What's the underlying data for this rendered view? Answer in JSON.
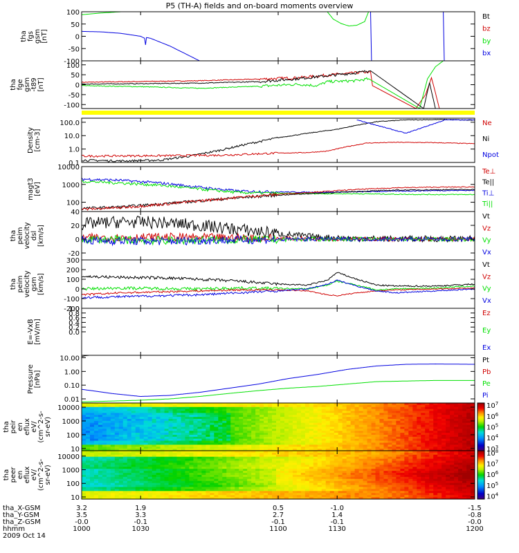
{
  "title": "P5 (TH-A) fields and on-board moments overview",
  "x_axis": {
    "tick_labels": [
      "1000",
      "1030",
      "1100",
      "1130",
      "1200"
    ],
    "x_values": [
      1000,
      1030,
      1100,
      1130,
      1200
    ],
    "xlim": [
      1000,
      1200
    ],
    "orbit_rows": [
      {
        "label": "tha_X-GSM",
        "values": [
          "3.2",
          "1.9",
          "0.5",
          "-1.0",
          "-1.5"
        ]
      },
      {
        "label": "tha_Y-GSM",
        "values": [
          "3.5",
          "3.3",
          "2.7",
          "1.4",
          "-0.8"
        ]
      },
      {
        "label": "tha_Z-GSM",
        "values": [
          "-0.0",
          "-0.1",
          "-0.1",
          "-0.1",
          "-0.0"
        ]
      },
      {
        "label": "hhmm",
        "values": [
          "1000",
          "1030",
          "1100",
          "1130",
          "1200"
        ]
      }
    ],
    "date_label": "2009 Oct 14"
  },
  "colors": {
    "black": "#000000",
    "red": "#d00000",
    "green": "#00e000",
    "blue": "#0000e0",
    "yellow": "#ffff00"
  },
  "chart_data": [
    {
      "type": "line",
      "panel": "fgs",
      "ylabel": [
        "tha",
        "fgs",
        "gsm",
        "[nT]"
      ],
      "ylim": [
        -100,
        100
      ],
      "yticks": [
        "100",
        "50",
        "0",
        "-50",
        "-100"
      ],
      "legend": [
        {
          "name": "Bt",
          "color": "#000000"
        },
        {
          "name": "bz",
          "color": "#d00000"
        },
        {
          "name": "by",
          "color": "#00e000"
        },
        {
          "name": "bx",
          "color": "#0000e0"
        }
      ],
      "series": [
        {
          "name": "by",
          "color": "#00e000",
          "x": [
            1000,
            1010,
            1020,
            1030
          ],
          "y": [
            88,
            95,
            100,
            105
          ]
        },
        {
          "name": "by",
          "color": "#00e000",
          "x": [
            1125,
            1128,
            1132,
            1136,
            1140,
            1144,
            1146
          ],
          "y": [
            100,
            70,
            52,
            42,
            45,
            60,
            100
          ]
        },
        {
          "name": "bx",
          "color": "#0000e0",
          "x": [
            1000,
            1010,
            1020,
            1030,
            1032,
            1032.5,
            1033,
            1035,
            1045,
            1055,
            1060
          ],
          "y": [
            20,
            18,
            12,
            0,
            -8,
            -35,
            -5,
            -8,
            -40,
            -80,
            -100
          ]
        },
        {
          "name": "bx",
          "color": "#0000e0",
          "x": [
            1147,
            1147.5
          ],
          "y": [
            100,
            -100
          ]
        },
        {
          "name": "bx",
          "color": "#0000e0",
          "x": [
            1184,
            1184.5
          ],
          "y": [
            100,
            -100
          ]
        }
      ]
    },
    {
      "type": "line",
      "panel": "fge",
      "ylabel": [
        "tha",
        "fge",
        "gsm",
        "-t89",
        "[nT]"
      ],
      "ylim": [
        -120,
        120
      ],
      "yticks": [
        "100",
        "50",
        "0",
        "-50",
        "-100"
      ],
      "series": [
        {
          "name": "bz",
          "color": "#d00000",
          "x": [
            1000,
            1030,
            1060,
            1090,
            1110,
            1125,
            1140,
            1147,
            1148,
            1170,
            1175,
            1178,
            1180,
            1182
          ],
          "y": [
            12,
            16,
            20,
            28,
            35,
            48,
            60,
            65,
            -5,
            -120,
            -50,
            35,
            -40,
            -120
          ]
        },
        {
          "name": "by",
          "color": "#00e000",
          "x": [
            1000,
            1030,
            1060,
            1090,
            1110,
            1120,
            1125,
            1140,
            1146,
            1172,
            1176,
            1180,
            1184
          ],
          "y": [
            -5,
            -10,
            -18,
            -8,
            2,
            -5,
            15,
            20,
            30,
            -120,
            30,
            90,
            120
          ]
        },
        {
          "name": "Bt",
          "color": "#000000",
          "x": [
            1000,
            1030,
            1060,
            1090,
            1110,
            1125,
            1140,
            1147,
            1174,
            1177,
            1180
          ],
          "y": [
            3,
            5,
            8,
            15,
            30,
            45,
            60,
            70,
            -120,
            10,
            -120
          ]
        }
      ]
    },
    {
      "type": "line",
      "panel": "density",
      "ylabel": [
        "Density",
        "[cm-3]"
      ],
      "ylim": [
        0.1,
        200
      ],
      "yscale": "log",
      "yticks": [
        "100.0",
        "10.0",
        "1.0",
        "0.1"
      ],
      "legend": [
        {
          "name": "Ne",
          "color": "#d00000"
        },
        {
          "name": "Ni",
          "color": "#000000"
        },
        {
          "name": "Npot",
          "color": "#0000e0"
        }
      ],
      "series": [
        {
          "name": "Ni",
          "color": "#000000",
          "x": [
            1000,
            1020,
            1040,
            1055,
            1070,
            1085,
            1100,
            1115,
            1130,
            1140,
            1150,
            1165,
            1185,
            1200
          ],
          "y": [
            0.15,
            0.13,
            0.15,
            0.3,
            0.8,
            2.5,
            7,
            15,
            30,
            60,
            110,
            150,
            160,
            140
          ]
        },
        {
          "name": "Ne",
          "color": "#d00000",
          "x": [
            1000,
            1040,
            1070,
            1100,
            1115,
            1125,
            1135,
            1145,
            1160,
            1180,
            1200
          ],
          "y": [
            0.3,
            0.32,
            0.35,
            0.5,
            0.55,
            0.7,
            1.5,
            2.8,
            3.2,
            3.0,
            2.5
          ]
        },
        {
          "name": "Npot",
          "color": "#0000e0",
          "x": [
            1140,
            1150,
            1165,
            1185,
            1200
          ],
          "y": [
            150,
            60,
            15,
            150,
            150
          ]
        }
      ]
    },
    {
      "type": "line",
      "panel": "temperature",
      "ylabel": [
        "magt3",
        "[eV]"
      ],
      "ylim": [
        30,
        10000
      ],
      "yscale": "log",
      "yticks": [
        "10000",
        "1000",
        "100"
      ],
      "legend": [
        {
          "name": "Te⊥",
          "color": "#d00000"
        },
        {
          "name": "Te||",
          "color": "#000000"
        },
        {
          "name": "Ti⊥",
          "color": "#0000e0"
        },
        {
          "name": "Ti||",
          "color": "#00e000"
        }
      ],
      "series": [
        {
          "name": "Ti⊥",
          "color": "#0000e0",
          "x": [
            1000,
            1020,
            1040,
            1060,
            1080,
            1100,
            1120,
            1140,
            1160,
            1180,
            1200
          ],
          "y": [
            2000,
            1700,
            1200,
            700,
            420,
            380,
            360,
            380,
            420,
            450,
            460
          ]
        },
        {
          "name": "Ti||",
          "color": "#00e000",
          "x": [
            1000,
            1020,
            1040,
            1060,
            1080,
            1100,
            1120,
            1140,
            1160,
            1180,
            1200
          ],
          "y": [
            1500,
            1200,
            900,
            550,
            350,
            320,
            300,
            300,
            280,
            270,
            270
          ]
        },
        {
          "name": "Te||",
          "color": "#000000",
          "x": [
            1000,
            1020,
            1040,
            1060,
            1080,
            1100,
            1120,
            1140,
            1160,
            1180,
            1200
          ],
          "y": [
            45,
            55,
            80,
            120,
            180,
            250,
            320,
            400,
            480,
            500,
            520
          ]
        },
        {
          "name": "Te⊥",
          "color": "#d00000",
          "x": [
            1000,
            1020,
            1040,
            1060,
            1080,
            1100,
            1120,
            1140,
            1160,
            1180,
            1200
          ],
          "y": [
            40,
            50,
            75,
            120,
            190,
            280,
            380,
            520,
            650,
            700,
            720
          ]
        }
      ]
    },
    {
      "type": "line",
      "panel": "velocity-dsl",
      "ylabel": [
        "tha",
        "peim",
        "velocity",
        "dsl",
        "[km/s]"
      ],
      "ylim": [
        -30,
        40
      ],
      "yticks": [
        "40",
        "20",
        "0",
        "-20"
      ],
      "legend": [
        {
          "name": "Vt",
          "color": "#000000"
        },
        {
          "name": "Vz",
          "color": "#d00000"
        },
        {
          "name": "Vy",
          "color": "#00e000"
        },
        {
          "name": "Vx",
          "color": "#0000e0"
        }
      ],
      "series": [
        {
          "name": "Vt",
          "color": "#000000",
          "x": [
            1000,
            1020,
            1040,
            1060,
            1080,
            1100,
            1120,
            1140,
            1160,
            1180,
            1200
          ],
          "y": [
            22,
            25,
            24,
            20,
            14,
            8,
            3,
            1,
            0.5,
            0.5,
            0.5
          ],
          "noise": 9
        },
        {
          "name": "Vz",
          "color": "#d00000",
          "x": [
            1000,
            1040,
            1080,
            1120,
            1160,
            1200
          ],
          "y": [
            2,
            3,
            2,
            0.5,
            0,
            0
          ],
          "noise": 6
        },
        {
          "name": "Vy",
          "color": "#00e000",
          "x": [
            1000,
            1040,
            1080,
            1120,
            1160,
            1200
          ],
          "y": [
            0,
            -2,
            -1,
            0,
            0,
            0
          ],
          "noise": 6
        },
        {
          "name": "Vx",
          "color": "#0000e0",
          "x": [
            1000,
            1040,
            1080,
            1120,
            1160,
            1200
          ],
          "y": [
            -2,
            -3,
            -1,
            0,
            0,
            0
          ],
          "noise": 6
        }
      ]
    },
    {
      "type": "line",
      "panel": "velocity-gsm",
      "ylabel": [
        "tha",
        "peim",
        "velocity",
        "gsm",
        "[km/s]"
      ],
      "ylim": [
        -200,
        300
      ],
      "yticks": [
        "300",
        "200",
        "100",
        "0",
        "-100",
        "-200"
      ],
      "legend": [
        {
          "name": "Vt",
          "color": "#000000"
        },
        {
          "name": "Vz",
          "color": "#d00000"
        },
        {
          "name": "Vy",
          "color": "#00e000"
        },
        {
          "name": "Vx",
          "color": "#0000e0"
        }
      ],
      "series": [
        {
          "name": "Vt",
          "color": "#000000",
          "x": [
            1000,
            1020,
            1040,
            1060,
            1080,
            1100,
            1115,
            1125,
            1130,
            1140,
            1150,
            1160,
            1180,
            1200
          ],
          "y": [
            130,
            120,
            115,
            100,
            80,
            50,
            40,
            90,
            170,
            100,
            40,
            30,
            30,
            50
          ],
          "noise": 15
        },
        {
          "name": "Vy",
          "color": "#00e000",
          "x": [
            1000,
            1020,
            1040,
            1060,
            1080,
            1100,
            1115,
            1125,
            1130,
            1140,
            1150,
            1160,
            1180,
            1200
          ],
          "y": [
            0,
            10,
            5,
            0,
            10,
            5,
            0,
            40,
            80,
            40,
            -10,
            0,
            10,
            30
          ],
          "noise": 15
        },
        {
          "name": "Vz",
          "color": "#d00000",
          "x": [
            1000,
            1020,
            1040,
            1060,
            1080,
            1100,
            1115,
            1125,
            1130,
            1140,
            1150,
            1160,
            1180,
            1200
          ],
          "y": [
            -60,
            -40,
            -30,
            -20,
            -10,
            -10,
            -20,
            -60,
            -70,
            -40,
            -20,
            -10,
            0,
            10
          ],
          "noise": 10
        },
        {
          "name": "Vx",
          "color": "#0000e0",
          "x": [
            1000,
            1020,
            1040,
            1060,
            1080,
            1100,
            1115,
            1125,
            1130,
            1140,
            1150,
            1160,
            1180,
            1200
          ],
          "y": [
            -90,
            -80,
            -70,
            -60,
            -40,
            -20,
            0,
            50,
            90,
            30,
            -20,
            -40,
            -20,
            0
          ],
          "noise": 12
        }
      ]
    },
    {
      "type": "line",
      "panel": "efield",
      "ylabel": [
        "E=-VxB",
        "[mV/m]"
      ],
      "ylim": [
        -1,
        1
      ],
      "yticks": [
        "1.0",
        "0.8",
        "0.6",
        "0.4",
        "0.2",
        "0.0"
      ],
      "legend": [
        {
          "name": "Ez",
          "color": "#d00000"
        },
        {
          "name": "Ey",
          "color": "#00e000"
        },
        {
          "name": "Ex",
          "color": "#0000e0"
        }
      ],
      "series": []
    },
    {
      "type": "line",
      "panel": "pressure",
      "ylabel": [
        "Pressure",
        "[nPa]"
      ],
      "ylim": [
        0.005,
        15
      ],
      "yscale": "log",
      "yticks": [
        "10.00",
        "1.00",
        "0.10",
        "0.01"
      ],
      "legend": [
        {
          "name": "Pt",
          "color": "#000000"
        },
        {
          "name": "Pb",
          "color": "#d00000"
        },
        {
          "name": "Pe",
          "color": "#00e000"
        },
        {
          "name": "Pi",
          "color": "#0000e0"
        }
      ],
      "series": [
        {
          "name": "Pi",
          "color": "#0000e0",
          "x": [
            1000,
            1015,
            1030,
            1045,
            1060,
            1075,
            1090,
            1105,
            1120,
            1135,
            1150,
            1165,
            1180,
            1200
          ],
          "y": [
            0.05,
            0.025,
            0.015,
            0.018,
            0.03,
            0.06,
            0.12,
            0.3,
            0.6,
            1.4,
            2.5,
            3.3,
            3.5,
            3.3
          ]
        },
        {
          "name": "Pe",
          "color": "#00e000",
          "x": [
            1000,
            1030,
            1045,
            1060,
            1075,
            1090,
            1105,
            1120,
            1135,
            1150,
            1165,
            1180,
            1200
          ],
          "y": [
            0.006,
            0.008,
            0.01,
            0.015,
            0.025,
            0.04,
            0.06,
            0.08,
            0.12,
            0.18,
            0.2,
            0.22,
            0.22
          ]
        },
        {
          "name": "Pt",
          "color": "#000000",
          "x": [
            1000,
            1002,
            1004,
            1006
          ],
          "y": [
            12,
            14,
            15,
            15
          ]
        }
      ]
    },
    {
      "type": "heatmap",
      "panel": "ion-spectrogram",
      "ylabel": [
        "tha",
        "peir",
        "en",
        "eflux",
        "eV/",
        "(cm^2-s-",
        "sr-eV)"
      ],
      "ylim": [
        7,
        20000
      ],
      "yscale": "log",
      "yticks": [
        "10000",
        "1000",
        "100",
        "10"
      ],
      "colorbar": {
        "ticks": [
          "10^7",
          "10^6",
          "10^5",
          "10^4",
          "10^3"
        ],
        "range_log10": [
          2.8,
          7.2
        ]
      }
    },
    {
      "type": "heatmap",
      "panel": "electron-spectrogram",
      "ylabel": [
        "tha",
        "peer",
        "en",
        "eflux",
        "eV/",
        "(cm^2-s-",
        "sr-eV)"
      ],
      "ylim": [
        7,
        25000
      ],
      "yscale": "log",
      "yticks": [
        "10000",
        "1000",
        "100",
        "10"
      ],
      "colorbar": {
        "ticks": [
          "10^8",
          "10^7",
          "10^6",
          "10^5",
          "10^4"
        ],
        "range_log10": [
          3.7,
          8.2
        ]
      }
    }
  ]
}
